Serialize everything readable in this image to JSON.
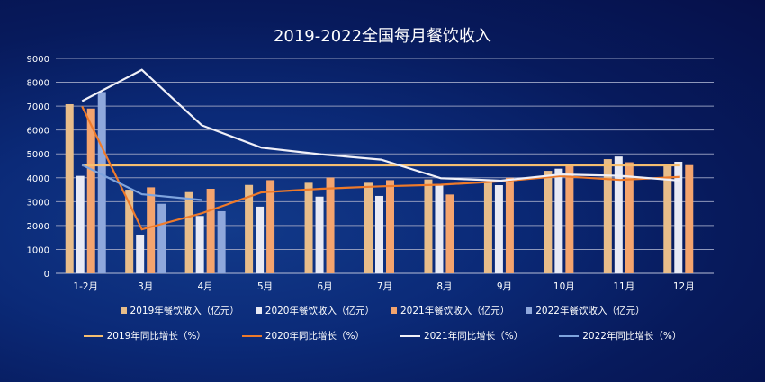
{
  "chart_data": {
    "type": "bar",
    "title": "2019-2022全国每月餐饮收入",
    "categories": [
      "1-2月",
      "3月",
      "4月",
      "5月",
      "6月",
      "7月",
      "8月",
      "9月",
      "10月",
      "11月",
      "12月"
    ],
    "ylim": [
      0,
      9000
    ],
    "yticks": [
      0,
      1000,
      2000,
      3000,
      4000,
      5000,
      6000,
      7000,
      8000,
      9000
    ],
    "grid": true,
    "legend_position": "bottom",
    "bar_series": [
      {
        "name": "2019年餐饮收入（亿元）",
        "color": "#E8BD8A",
        "values": [
          7080,
          3500,
          3400,
          3700,
          3790,
          3790,
          3930,
          3830,
          4290,
          4780,
          4500
        ]
      },
      {
        "name": "2020年餐饮收入（亿元）",
        "color": "#E8EAF5",
        "values": [
          4080,
          1620,
          2400,
          2790,
          3210,
          3240,
          3690,
          3690,
          4380,
          4890,
          4670
        ]
      },
      {
        "name": "2021年餐饮收入（亿元）",
        "color": "#F4A46E",
        "values": [
          6900,
          3600,
          3540,
          3900,
          4010,
          3900,
          3300,
          4000,
          4500,
          4650,
          4530
        ]
      },
      {
        "name": "2022年餐饮收入（亿元）",
        "color": "#8FA8DC",
        "values": [
          7590,
          2910,
          2600,
          null,
          null,
          null,
          null,
          null,
          null,
          null,
          null
        ]
      }
    ],
    "line_series": [
      {
        "name": "2019年同比增长（%）",
        "color": "#F5BE70",
        "values": [
          4520,
          4520,
          4520,
          4520,
          4520,
          4520,
          4520,
          4520,
          4520,
          4520,
          4520
        ]
      },
      {
        "name": "2020年同比增长（%）",
        "color": "#EE7A2A",
        "values": [
          6990,
          1840,
          2510,
          3390,
          3540,
          3640,
          3710,
          3850,
          4070,
          3910,
          4040
        ]
      },
      {
        "name": "2021年同比增长（%）",
        "color": "#F0F0F8",
        "values": [
          7210,
          8520,
          6200,
          5260,
          4980,
          4760,
          3980,
          3880,
          4140,
          4080,
          3880
        ]
      },
      {
        "name": "2022年同比增长（%）",
        "color": "#7EA4DE",
        "values": [
          4540,
          3310,
          3070,
          null,
          null,
          null,
          null,
          null,
          null,
          null,
          null
        ]
      }
    ]
  }
}
